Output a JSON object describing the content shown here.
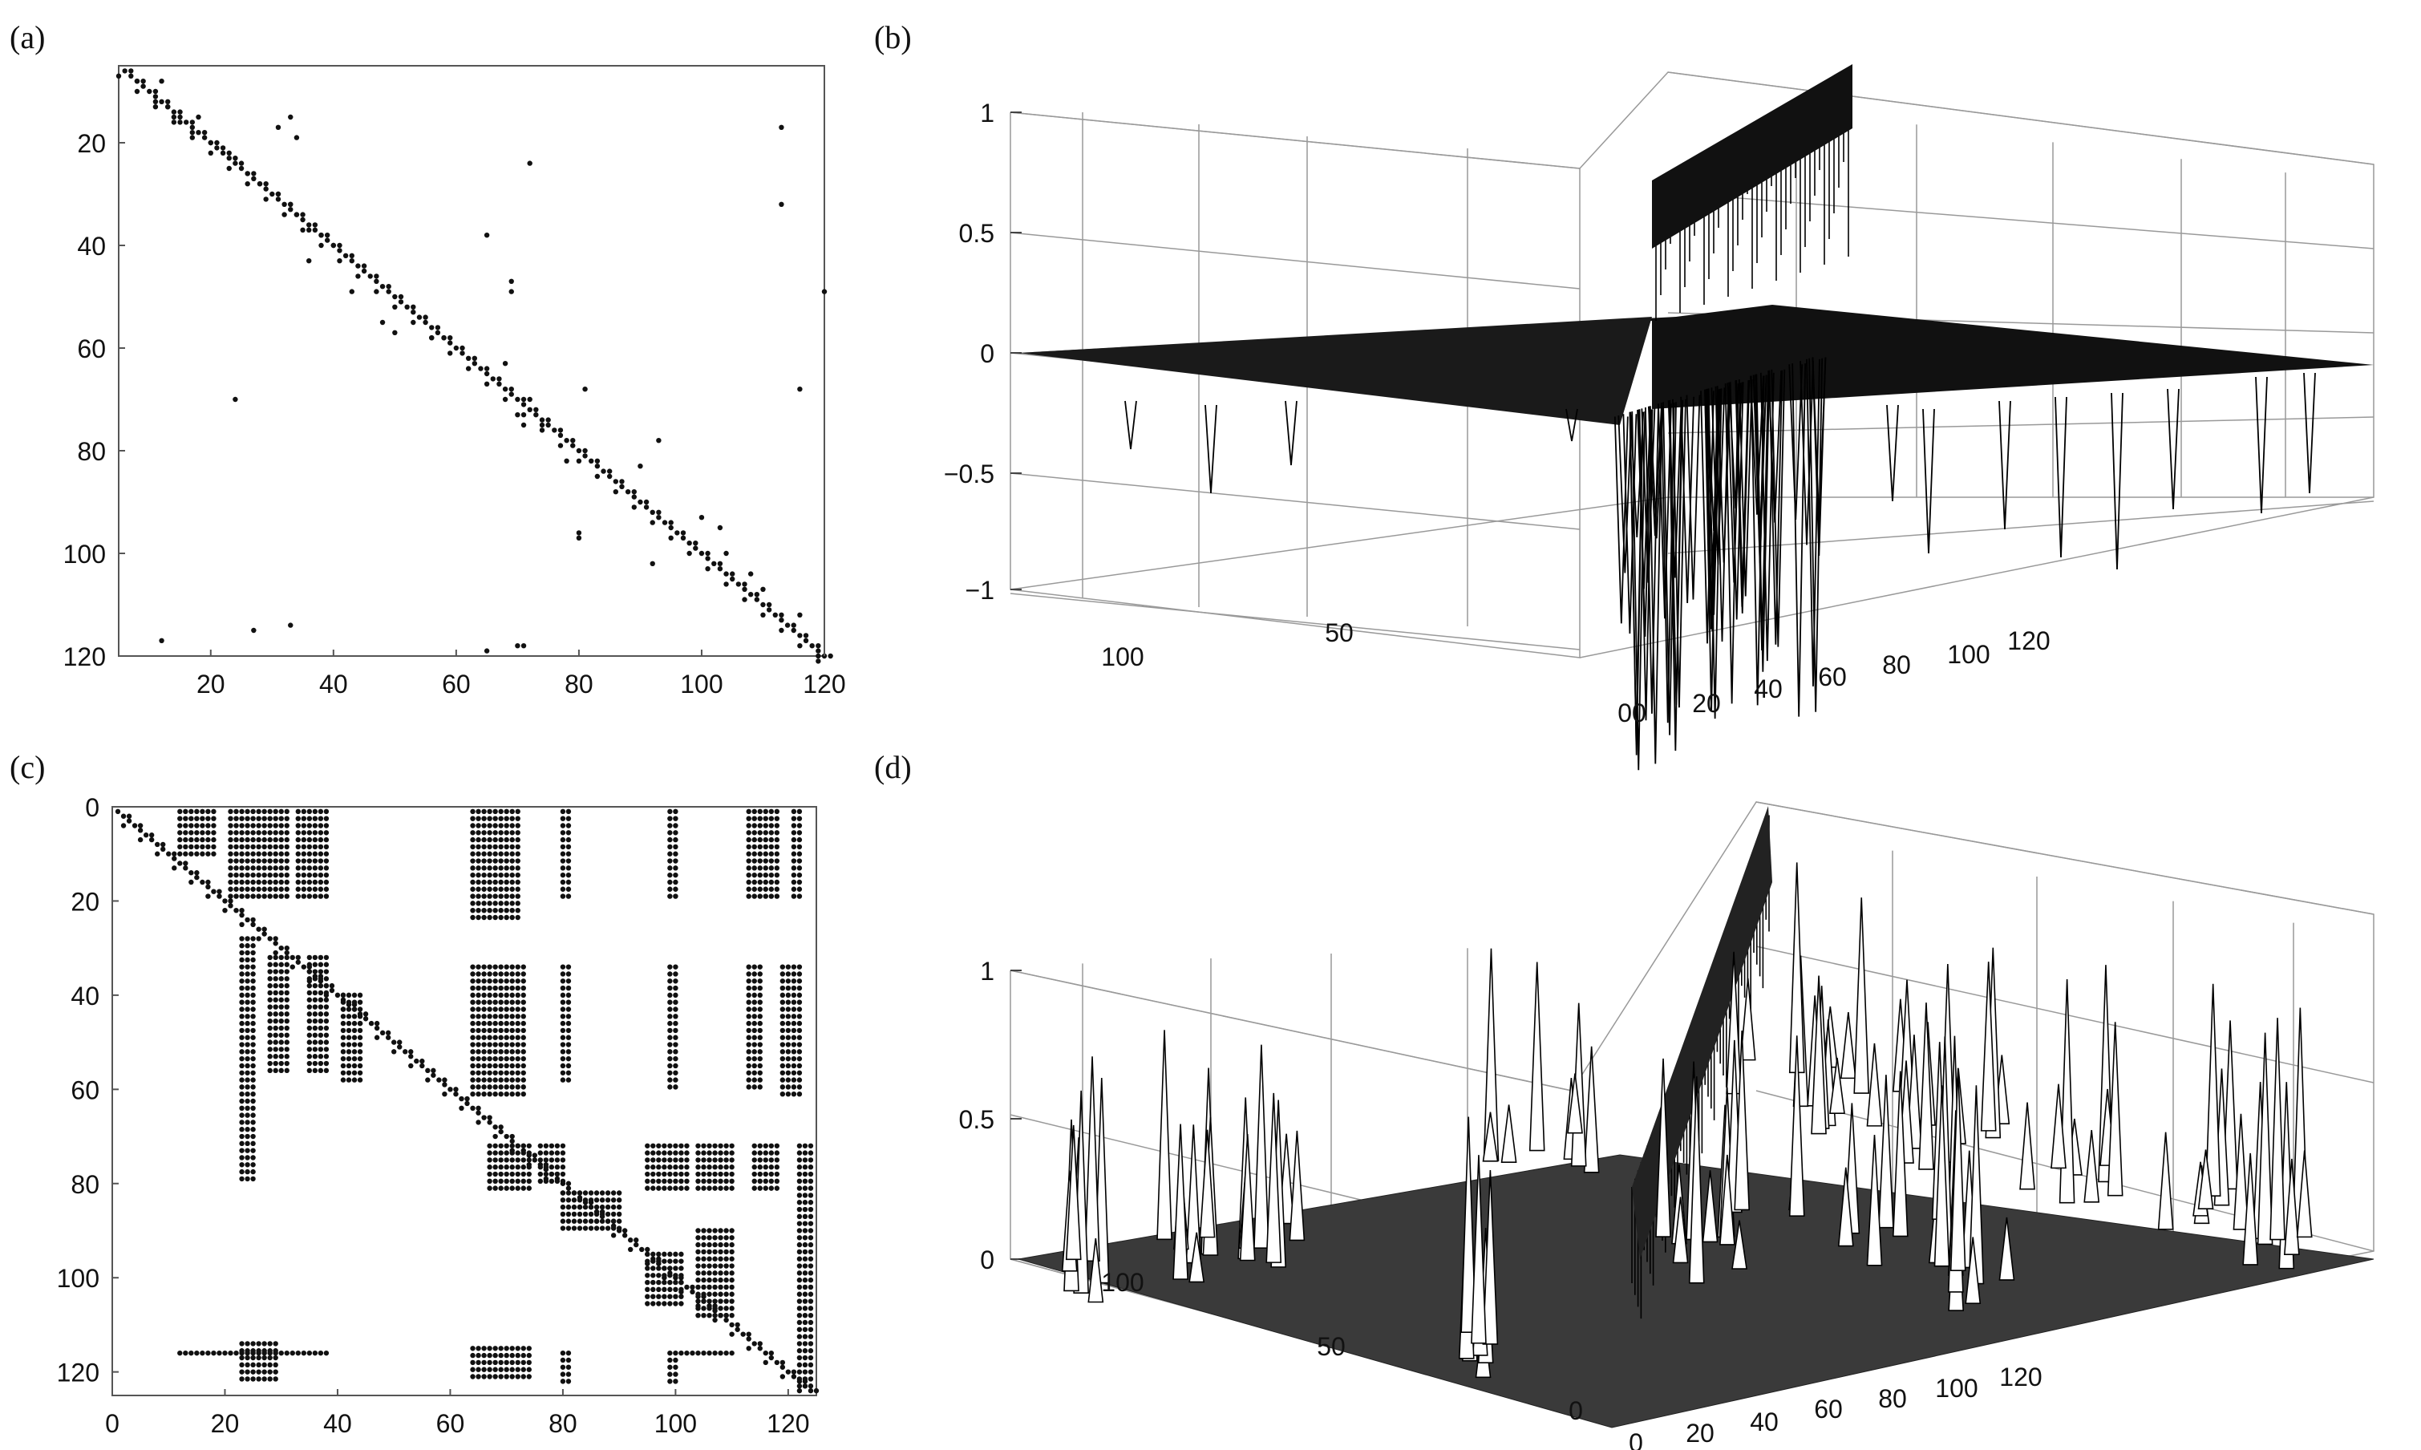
{
  "figure": {
    "panel_labels": [
      "(a)",
      "(b)",
      "(c)",
      "(d)"
    ]
  },
  "chart_data": [
    {
      "id": "a",
      "type": "scatter",
      "subtype": "sparsity-pattern",
      "title": "",
      "xlabel": "",
      "ylabel": "",
      "xlim": [
        5,
        120
      ],
      "ylim": [
        5,
        120
      ],
      "y_reversed": true,
      "xticks": [
        "20",
        "40",
        "60",
        "80",
        "100",
        "120"
      ],
      "yticks": [
        "20",
        "40",
        "60",
        "80",
        "100",
        "120"
      ],
      "diagonal": {
        "from": 6,
        "to": 120
      },
      "points": [
        [
          8,
          8
        ],
        [
          12,
          8
        ],
        [
          11,
          12
        ],
        [
          13,
          13
        ],
        [
          15,
          16
        ],
        [
          17,
          18
        ],
        [
          14,
          15
        ],
        [
          18,
          15
        ],
        [
          20,
          20
        ],
        [
          22,
          21
        ],
        [
          24,
          23
        ],
        [
          26,
          26
        ],
        [
          28,
          28
        ],
        [
          31,
          30
        ],
        [
          33,
          32
        ],
        [
          34,
          34
        ],
        [
          36,
          37
        ],
        [
          38,
          38
        ],
        [
          40,
          40
        ],
        [
          31,
          17
        ],
        [
          33,
          15
        ],
        [
          34,
          19
        ],
        [
          113,
          17
        ],
        [
          113,
          32
        ],
        [
          72,
          24
        ],
        [
          120,
          49
        ],
        [
          36,
          43
        ],
        [
          43,
          49
        ],
        [
          48,
          55
        ],
        [
          50,
          57
        ],
        [
          56,
          58
        ],
        [
          58,
          58
        ],
        [
          65,
          38
        ],
        [
          69,
          47
        ],
        [
          69,
          49
        ],
        [
          68,
          63
        ],
        [
          70,
          73
        ],
        [
          71,
          75
        ],
        [
          81,
          68
        ],
        [
          78,
          82
        ],
        [
          72,
          70
        ],
        [
          74,
          75
        ],
        [
          90,
          83
        ],
        [
          93,
          78
        ],
        [
          80,
          96
        ],
        [
          80,
          97
        ],
        [
          92,
          102
        ],
        [
          100,
          93
        ],
        [
          103,
          95
        ],
        [
          104,
          100
        ],
        [
          108,
          104
        ],
        [
          110,
          107
        ],
        [
          12,
          117
        ],
        [
          27,
          115
        ],
        [
          33,
          114
        ],
        [
          24,
          70
        ],
        [
          65,
          119
        ],
        [
          70,
          118
        ],
        [
          71,
          118
        ],
        [
          116,
          68
        ],
        [
          116,
          112
        ],
        [
          119,
          120
        ]
      ]
    },
    {
      "id": "b",
      "type": "surface",
      "title": "",
      "zlim": [
        -1,
        1
      ],
      "zticks": [
        "1",
        "0.5",
        "0",
        "−0.5",
        "−1"
      ],
      "xticks": [
        "00",
        "20",
        "40",
        "60",
        "80",
        "100",
        "120"
      ],
      "yticks": [
        "100",
        "50"
      ],
      "grid": true,
      "description_values": {
        "wall_height": 1,
        "base_level": 0,
        "min_spike": -1
      }
    },
    {
      "id": "c",
      "type": "scatter",
      "subtype": "sparsity-pattern",
      "title": "",
      "xlabel": "",
      "ylabel": "",
      "xlim": [
        0,
        125
      ],
      "ylim": [
        0,
        125
      ],
      "y_reversed": true,
      "xticks": [
        "0",
        "20",
        "40",
        "60",
        "80",
        "100",
        "120"
      ],
      "yticks": [
        "0",
        "20",
        "40",
        "60",
        "80",
        "100",
        "120"
      ],
      "diagonal": {
        "from": 1,
        "to": 124
      },
      "blocks": [
        [
          12,
          18,
          1,
          11
        ],
        [
          21,
          26,
          1,
          20
        ],
        [
          27,
          31,
          1,
          20
        ],
        [
          33,
          38,
          1,
          20
        ],
        [
          64,
          72,
          1,
          24
        ],
        [
          80,
          81,
          1,
          20
        ],
        [
          99,
          100,
          1,
          20
        ],
        [
          113,
          118,
          1,
          20
        ],
        [
          121,
          122,
          1,
          20
        ],
        [
          23,
          25,
          28,
          80
        ],
        [
          28,
          31,
          32,
          56
        ],
        [
          35,
          38,
          32,
          56
        ],
        [
          41,
          44,
          40,
          58
        ],
        [
          64,
          73,
          34,
          62
        ],
        [
          80,
          81,
          34,
          58
        ],
        [
          99,
          100,
          34,
          60
        ],
        [
          113,
          115,
          34,
          60
        ],
        [
          119,
          122,
          34,
          62
        ],
        [
          67,
          74,
          72,
          82
        ],
        [
          76,
          80,
          72,
          80
        ],
        [
          95,
          102,
          72,
          82
        ],
        [
          104,
          110,
          72,
          82
        ],
        [
          114,
          118,
          72,
          82
        ],
        [
          122,
          124,
          72,
          124
        ],
        [
          80,
          90,
          82,
          90
        ],
        [
          95,
          101,
          95,
          106
        ],
        [
          104,
          110,
          90,
          108
        ],
        [
          12,
          38,
          116,
          117
        ],
        [
          23,
          29,
          114,
          122
        ],
        [
          64,
          74,
          115,
          122
        ],
        [
          80,
          81,
          116,
          122
        ],
        [
          99,
          100,
          116,
          122
        ],
        [
          101,
          110,
          116,
          117
        ]
      ]
    },
    {
      "id": "d",
      "type": "surface",
      "title": "",
      "zlim": [
        0,
        1
      ],
      "zticks": [
        "1",
        "0.5",
        "0"
      ],
      "xticks": [
        "0",
        "20",
        "40",
        "60",
        "80",
        "100",
        "120"
      ],
      "yticks": [
        "100",
        "50",
        "0"
      ],
      "grid": true,
      "description_values": {
        "wall_height": 1,
        "base_level": 0
      }
    }
  ]
}
